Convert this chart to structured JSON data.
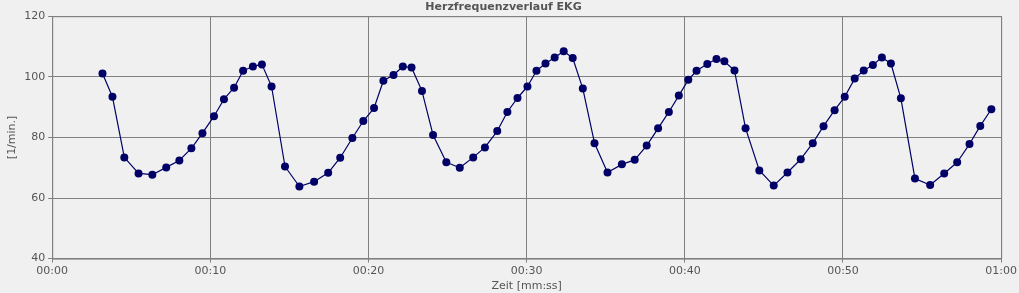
{
  "chart_data": {
    "type": "line",
    "title": "Herzfrequenzverlauf EKG",
    "xlabel": "Zeit [mm:ss]",
    "ylabel": "[1/min.]",
    "x": [
      3.18,
      3.81,
      4.56,
      5.46,
      6.33,
      7.21,
      8.04,
      8.8,
      9.5,
      10.23,
      10.86,
      11.5,
      12.07,
      12.69,
      13.26,
      13.87,
      14.72,
      15.63,
      16.56,
      17.45,
      18.21,
      18.98,
      19.67,
      20.35,
      20.94,
      21.58,
      22.17,
      22.72,
      23.38,
      24.08,
      24.92,
      25.77,
      26.62,
      27.36,
      28.14,
      28.78,
      29.42,
      30.05,
      30.62,
      31.19,
      31.77,
      32.34,
      32.91,
      33.55,
      34.29,
      35.11,
      36.02,
      36.83,
      37.59,
      38.31,
      38.99,
      39.62,
      40.22,
      40.74,
      41.42,
      42.0,
      42.5,
      43.14,
      43.84,
      44.71,
      45.62,
      46.49,
      47.33,
      48.09,
      48.77,
      49.47,
      50.11,
      50.74,
      51.31,
      51.89,
      52.46,
      53.03,
      53.66,
      54.55,
      55.51,
      56.4,
      57.22,
      58.0,
      58.68,
      59.38
    ],
    "series": [
      {
        "color": "#000066",
        "values": [
          101.1,
          93.4,
          73.4,
          68.1,
          67.7,
          70.1,
          72.4,
          76.4,
          81.4,
          87.0,
          92.6,
          96.4,
          102,
          103.4,
          104.1,
          96.8,
          70.4,
          63.8,
          65.4,
          68.3,
          73.3,
          79.8,
          85.4,
          89.7,
          98.7,
          100.6,
          103.4,
          103.1,
          95.3,
          80.8,
          71.8,
          70,
          73.4,
          76.7,
          82.1,
          88.4,
          93,
          96.8,
          102,
          104.4,
          106.4,
          108.4,
          106.2,
          96.1,
          78.1,
          68.4,
          71.1,
          72.6,
          77.3,
          83,
          88.4,
          93.8,
          99,
          102,
          104.2,
          105.9,
          105.1,
          102.1,
          83,
          69.1,
          64.1,
          68.4,
          72.8,
          78.1,
          83.7,
          89,
          93.4,
          99.4,
          102.1,
          103.9,
          106.4,
          104.4,
          92.9,
          66.4,
          64.3,
          68.1,
          71.8,
          77.8,
          83.8,
          89.3
        ]
      }
    ],
    "xlim": [
      0,
      60
    ],
    "xticks": [
      {
        "value": 0,
        "label": "00:00"
      },
      {
        "value": 10,
        "label": "00:10"
      },
      {
        "value": 20,
        "label": "00:20"
      },
      {
        "value": 30,
        "label": "00:30"
      },
      {
        "value": 40,
        "label": "00:40"
      },
      {
        "value": 50,
        "label": "00:50"
      },
      {
        "value": 60,
        "label": "01:00"
      }
    ],
    "ylim": [
      40,
      120
    ],
    "yticks": [
      40,
      60,
      80,
      100,
      120
    ],
    "grid": true,
    "legend": false,
    "marker": "circle",
    "line_style": "solid"
  }
}
